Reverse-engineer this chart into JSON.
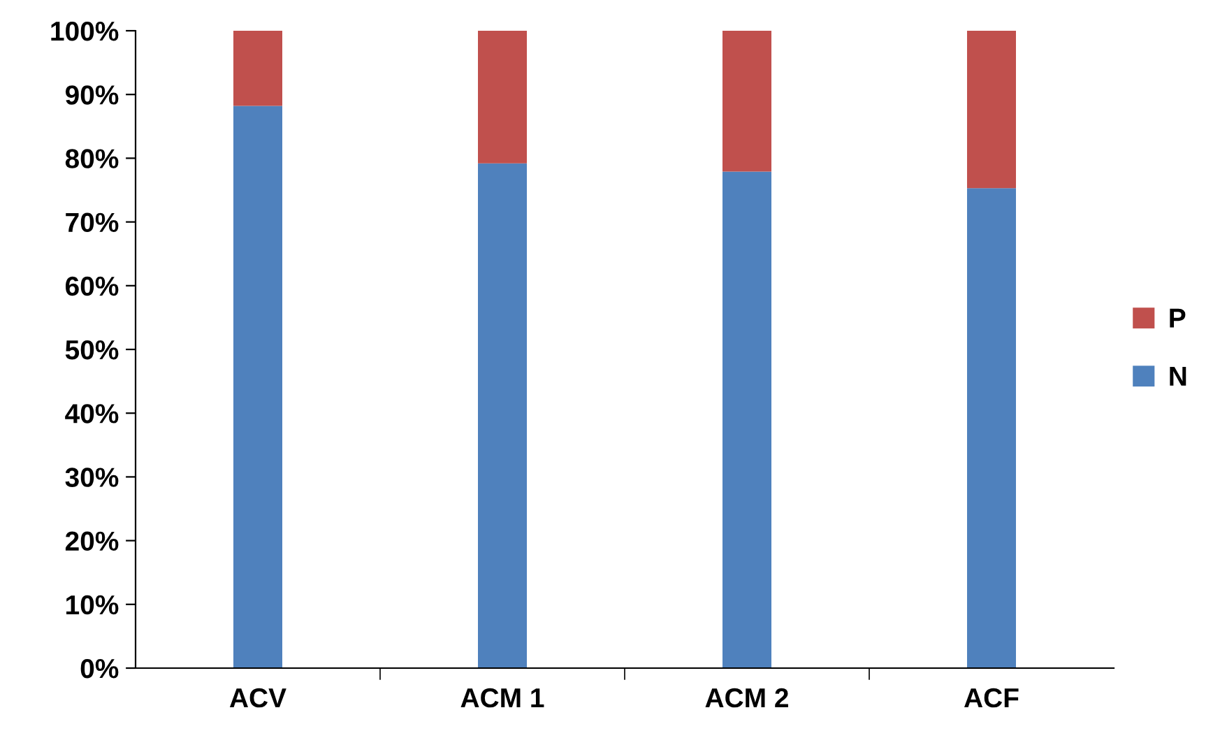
{
  "chart_data": {
    "type": "bar",
    "stacked": true,
    "categories": [
      "ACV",
      "ACM 1",
      "ACM 2",
      "ACF"
    ],
    "series": [
      {
        "name": "N",
        "color": "#4f81bd",
        "values": [
          88.2,
          79.2,
          77.9,
          75.3
        ]
      },
      {
        "name": "P",
        "color": "#c0504d",
        "values": [
          11.8,
          20.8,
          22.1,
          24.7
        ]
      }
    ],
    "ylim": [
      0,
      100
    ],
    "yticks": [
      {
        "value": 0,
        "label": "0%"
      },
      {
        "value": 10,
        "label": "10%"
      },
      {
        "value": 20,
        "label": "20%"
      },
      {
        "value": 30,
        "label": "30%"
      },
      {
        "value": 40,
        "label": "40%"
      },
      {
        "value": 50,
        "label": "50%"
      },
      {
        "value": 60,
        "label": "60%"
      },
      {
        "value": 70,
        "label": "70%"
      },
      {
        "value": 80,
        "label": "80%"
      },
      {
        "value": 90,
        "label": "90%"
      },
      {
        "value": 100,
        "label": "100%"
      }
    ],
    "grid": false,
    "legend": "right"
  }
}
